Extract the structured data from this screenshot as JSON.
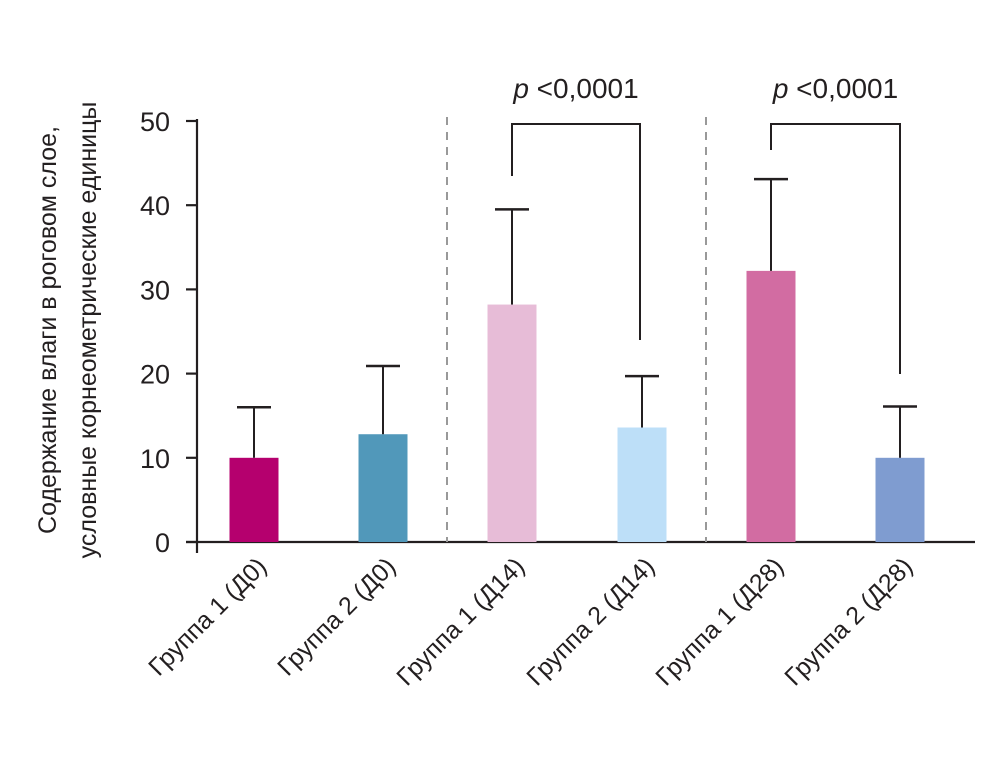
{
  "chart_data": {
    "type": "bar",
    "title": "",
    "xlabel": "",
    "ylabel_lines": [
      "Содержание влаги в роговом слое,",
      "условные корнеометрические единицы"
    ],
    "ylim": [
      0,
      50
    ],
    "yticks": [
      0,
      10,
      20,
      30,
      40,
      50
    ],
    "grid": false,
    "categories": [
      "Группа 1 (Д0)",
      "Группа 2 (Д0)",
      "Группа 1 (Д14)",
      "Группа 2 (Д14)",
      "Группа 1 (Д28)",
      "Группа 2 (Д28)"
    ],
    "values": [
      10,
      12.8,
      28.2,
      13.6,
      32.2,
      10
    ],
    "error_upper": [
      16,
      20.9,
      39.5,
      19.7,
      43.1,
      16.1
    ],
    "colors": [
      "#b5006e",
      "#5198ba",
      "#e7bcd7",
      "#bddff8",
      "#d26ca2",
      "#7f9cd0"
    ],
    "significance": [
      {
        "p_symbol": "p",
        "p_text": " <0,0001",
        "between": [
          2,
          3
        ]
      },
      {
        "p_symbol": "p",
        "p_text": " <0,0001",
        "between": [
          4,
          5
        ]
      }
    ]
  }
}
